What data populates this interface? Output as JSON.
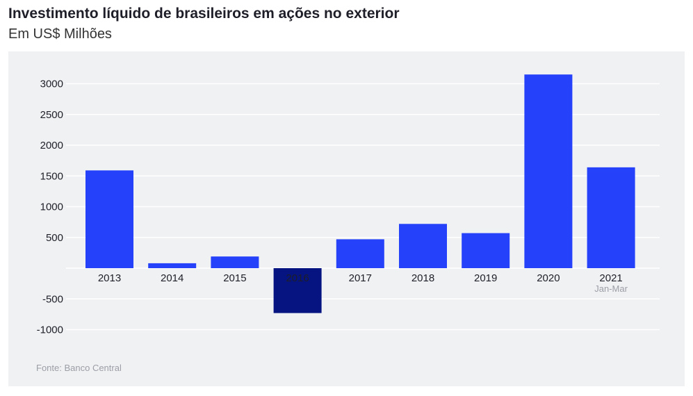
{
  "header": {
    "title": "Investimento líquido de brasileiros em ações no exterior",
    "subtitle": "Em US$ Milhões"
  },
  "footer": {
    "source": "Fonte: Banco Central"
  },
  "colors": {
    "bar": "#2541fa",
    "highlight": "#051480",
    "panel": "#f0f1f3",
    "grid": "#ffffff"
  },
  "chart_data": {
    "type": "bar",
    "title": "Investimento líquido de brasileiros em ações no exterior",
    "subtitle": "Em US$ Milhões",
    "categories": [
      "2013",
      "2014",
      "2015",
      "2016",
      "2017",
      "2018",
      "2019",
      "2020",
      "2021"
    ],
    "category_sublabels": {
      "2021": "Jan-Mar"
    },
    "values": [
      1590,
      80,
      190,
      -730,
      470,
      720,
      570,
      3150,
      1640
    ],
    "highlight": "2016",
    "yticks": [
      -1000,
      -500,
      500,
      1000,
      1500,
      2000,
      2500,
      3000
    ],
    "ylim": [
      -1100,
      3200
    ],
    "grid": true,
    "legend": false
  }
}
